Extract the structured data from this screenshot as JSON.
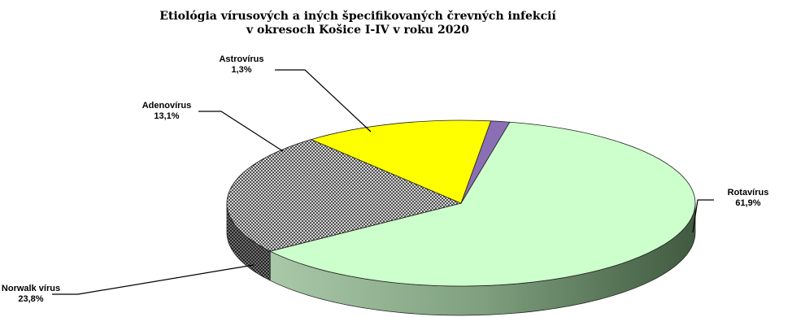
{
  "chart_data": {
    "type": "pie",
    "title_lines": [
      "Etiológia vírusových a iných špecifikovaných črevných infekcií",
      "v okresoch Košice I-IV v roku 2020"
    ],
    "slices": [
      {
        "name": "Rotavírus",
        "value": 61.9,
        "value_label": "61,9%",
        "color": "#ccffcc",
        "side_color": "#8fb28f"
      },
      {
        "name": "Norwalk vírus",
        "value": 23.8,
        "value_label": "23,8%",
        "color": "#9a9a9a",
        "side_color": "#555555",
        "pattern": "crosshatch"
      },
      {
        "name": "Adenovírus",
        "value": 13.1,
        "value_label": "13,1%",
        "color": "#ffff00",
        "side_color": "#b3b300"
      },
      {
        "name": "Astrovírus",
        "value": 1.3,
        "value_label": "1,3%",
        "color": "#8a6fb5",
        "side_color": "#5a4585"
      }
    ],
    "style": "3d-exploded-oval",
    "legend": "none"
  }
}
